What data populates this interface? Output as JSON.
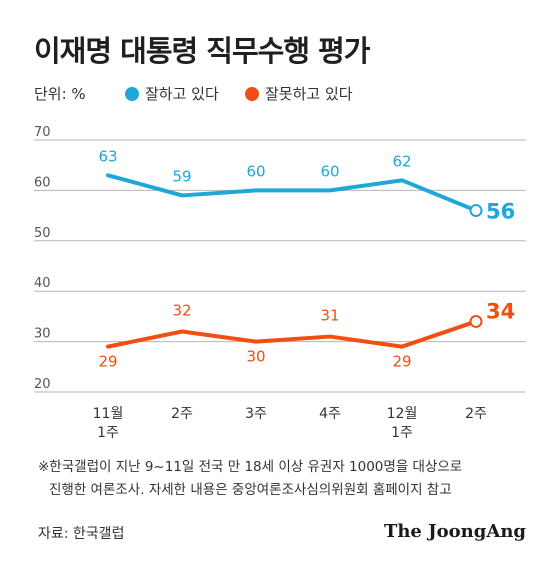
{
  "title": "이재명 대통령 직무수행 평가",
  "unit": "단위: %",
  "colors": {
    "approve": "#1ea7d9",
    "disapprove": "#f24d13",
    "grid": "#b5b5b5",
    "axis_text": "#555555"
  },
  "footnote": {
    "line1": "※한국갤럽이 지난 9~11일 전국 만 18세 이상 유권자 1000명을 대상으로",
    "line2": "진행한 여론조사. 자세한 내용은 중앙여론조사심의위원회 홈페이지 참고"
  },
  "source": "자료: 한국갤럽",
  "brand": "The JoongAng",
  "chart_data": {
    "type": "line",
    "categories": [
      [
        "11월",
        "1주"
      ],
      [
        "2주"
      ],
      [
        "3주"
      ],
      [
        "4주"
      ],
      [
        "12월",
        "1주"
      ],
      [
        "2주"
      ]
    ],
    "ylim": [
      20,
      70
    ],
    "yticks": [
      20,
      30,
      40,
      50,
      60,
      70
    ],
    "grid": true,
    "legend_position": "top",
    "series": [
      {
        "name": "잘하고 있다",
        "color": "#1ea7d9",
        "values": [
          63,
          59,
          60,
          60,
          62,
          56
        ],
        "label_position": "above"
      },
      {
        "name": "잘못하고 있다",
        "color": "#f24d13",
        "values": [
          29,
          32,
          30,
          31,
          29,
          34
        ],
        "label_position": "alternate"
      }
    ],
    "last_label_emphasis": true
  }
}
